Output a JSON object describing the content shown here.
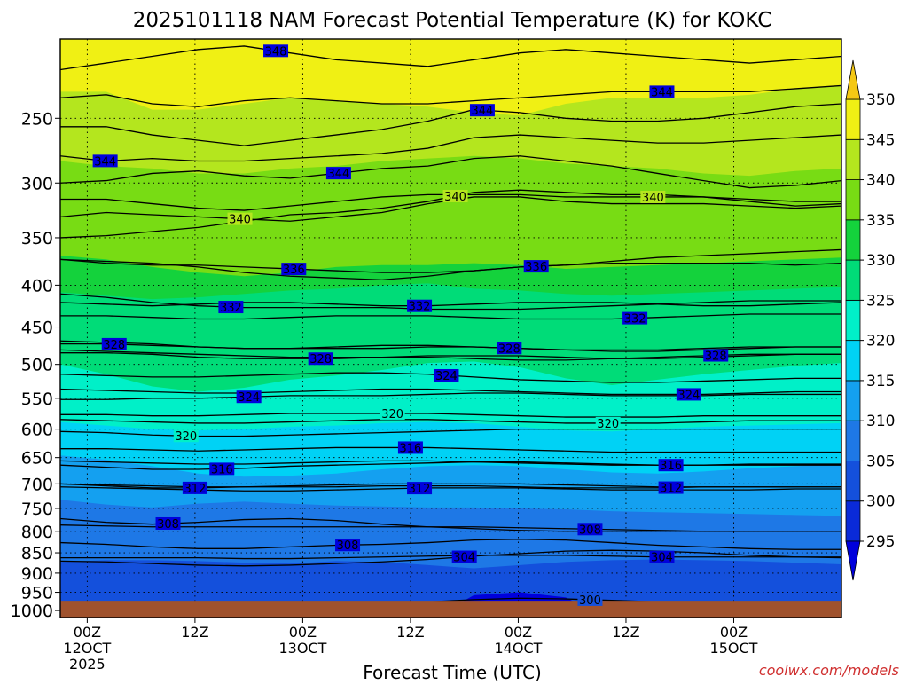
{
  "chart_data": {
    "type": "contour",
    "title": "2025101118 NAM Forecast Potential Temperature (K) for KOKC",
    "xlabel": "Forecast Time (UTC)",
    "ylabel": "",
    "watermark": "coolwx.com/models",
    "x_range_hours": [
      -3,
      84
    ],
    "y_axis": {
      "scale": "log-pressure",
      "range_hpa": [
        1020,
        200
      ],
      "ticks": [
        250,
        300,
        350,
        400,
        450,
        500,
        550,
        600,
        650,
        700,
        750,
        800,
        850,
        900,
        950,
        1000
      ]
    },
    "x_ticks": [
      {
        "hour": 0,
        "label": "00Z",
        "sub1": "12OCT",
        "sub2": "2025"
      },
      {
        "hour": 12,
        "label": "12Z",
        "sub1": "",
        "sub2": ""
      },
      {
        "hour": 24,
        "label": "00Z",
        "sub1": "13OCT",
        "sub2": ""
      },
      {
        "hour": 36,
        "label": "12Z",
        "sub1": "",
        "sub2": ""
      },
      {
        "hour": 48,
        "label": "00Z",
        "sub1": "14OCT",
        "sub2": ""
      },
      {
        "hour": 60,
        "label": "12Z",
        "sub1": "",
        "sub2": ""
      },
      {
        "hour": 72,
        "label": "00Z",
        "sub1": "15OCT",
        "sub2": ""
      }
    ],
    "color_scale": {
      "levels": [
        295,
        300,
        305,
        310,
        315,
        320,
        325,
        330,
        335,
        340,
        345,
        350
      ],
      "labels": [
        "295",
        "300",
        "305",
        "310",
        "315",
        "320",
        "325",
        "330",
        "335",
        "340",
        "345",
        "350"
      ],
      "colors": [
        "#0000dc",
        "#0a2ad8",
        "#1450dc",
        "#1e78e6",
        "#14a0f0",
        "#00d2f5",
        "#00f0c8",
        "#00dc78",
        "#14d23c",
        "#78dc14",
        "#b4e61e",
        "#f0f014",
        "#f5c814"
      ]
    },
    "shaded_bands": [
      {
        "value": 350,
        "pressure_hpa": [
          190,
          190,
          190,
          190,
          190,
          190,
          190,
          190,
          190,
          190,
          190,
          190,
          190,
          190,
          190,
          190,
          190,
          190
        ]
      },
      {
        "value": 345,
        "pressure_hpa": [
          232,
          232,
          244,
          244,
          240,
          236,
          238,
          240,
          242,
          246,
          248,
          240,
          236,
          236,
          236,
          234,
          230,
          228
        ]
      },
      {
        "value": 340,
        "pressure_hpa": [
          282,
          286,
          288,
          292,
          292,
          288,
          286,
          282,
          280,
          278,
          280,
          284,
          286,
          288,
          292,
          294,
          290,
          288
        ]
      },
      {
        "value": 335,
        "pressure_hpa": [
          368,
          372,
          380,
          386,
          390,
          386,
          380,
          378,
          378,
          376,
          378,
          382,
          380,
          378,
          376,
          374,
          372,
          370
        ]
      },
      {
        "value": 330,
        "pressure_hpa": [
          408,
          412,
          416,
          414,
          410,
          406,
          404,
          400,
          398,
          404,
          406,
          410,
          412,
          410,
          408,
          406,
          404,
          402
        ]
      },
      {
        "value": 325,
        "pressure_hpa": [
          500,
          514,
          532,
          540,
          534,
          522,
          516,
          508,
          498,
          496,
          504,
          520,
          530,
          522,
          514,
          508,
          502,
          498
        ]
      },
      {
        "value": 320,
        "pressure_hpa": [
          588,
          594,
          600,
          602,
          600,
          596,
          594,
          590,
          588,
          590,
          596,
          602,
          604,
          600,
          596,
          594,
          592,
          590
        ]
      },
      {
        "value": 315,
        "pressure_hpa": [
          646,
          654,
          666,
          680,
          686,
          684,
          680,
          672,
          666,
          664,
          666,
          672,
          678,
          680,
          676,
          670,
          666,
          662
        ]
      },
      {
        "value": 310,
        "pressure_hpa": [
          732,
          742,
          748,
          740,
          736,
          740,
          744,
          746,
          748,
          748,
          750,
          752,
          756,
          758,
          760,
          762,
          764,
          766
        ]
      },
      {
        "value": 305,
        "pressure_hpa": [
          872,
          868,
          868,
          870,
          874,
          876,
          870,
          872,
          880,
          888,
          880,
          872,
          868,
          866,
          868,
          870,
          874,
          878
        ]
      },
      {
        "value": 300,
        "pressure_hpa": [
          1030,
          1030,
          1030,
          1030,
          1030,
          1030,
          1030,
          1030,
          1030,
          958,
          950,
          964,
          1030,
          1030,
          1030,
          1030,
          1030,
          1030
        ]
      }
    ],
    "contours": [
      {
        "value": 348,
        "label": "348",
        "label_hour": 21,
        "pressure_hpa": [
          218,
          214,
          210,
          206,
          204,
          208,
          212,
          214,
          216,
          212,
          208,
          206,
          208,
          210,
          212,
          214,
          212,
          210
        ]
      },
      {
        "value": 344,
        "label": "344",
        "label_hour": 2,
        "pressure_hpa": [
          278,
          282,
          280,
          282,
          282,
          280,
          278,
          276,
          272,
          264,
          262,
          264,
          266,
          268,
          268,
          266,
          264,
          262
        ]
      },
      {
        "value": 344,
        "label": "344",
        "label_hour": 28,
        "pressure_hpa": [
          300,
          298,
          292,
          290,
          294,
          296,
          292,
          288,
          286,
          280,
          278,
          282,
          286,
          292,
          298,
          304,
          302,
          298
        ]
      },
      {
        "value": 344,
        "label": "344",
        "label_hour": 44,
        "pressure_hpa": [
          256,
          256,
          262,
          266,
          270,
          266,
          262,
          258,
          252,
          244,
          246,
          250,
          252,
          252,
          250,
          246,
          242,
          240
        ]
      },
      {
        "value": 344,
        "label": "344",
        "label_hour": 64,
        "pressure_hpa": [
          236,
          234,
          240,
          242,
          238,
          236,
          238,
          240,
          240,
          238,
          236,
          234,
          232,
          232,
          232,
          232,
          230,
          228
        ]
      },
      {
        "value": 340,
        "label": "340",
        "label_hour": 17,
        "pressure_hpa": [
          330,
          326,
          328,
          330,
          332,
          334,
          330,
          326,
          318,
          312,
          312,
          316,
          318,
          318,
          318,
          320,
          322,
          320
        ]
      },
      {
        "value": 340,
        "label": "340",
        "label_hour": 41,
        "pressure_hpa": [
          350,
          348,
          344,
          340,
          334,
          328,
          326,
          322,
          316,
          308,
          306,
          308,
          310,
          310,
          312,
          316,
          320,
          318
        ]
      },
      {
        "value": 340,
        "label": "340",
        "label_hour": 63,
        "pressure_hpa": [
          314,
          314,
          318,
          322,
          324,
          320,
          316,
          312,
          310,
          310,
          310,
          312,
          312,
          312,
          312,
          314,
          316,
          316
        ]
      },
      {
        "value": 336,
        "label": "336",
        "label_hour": 23,
        "pressure_hpa": [
          372,
          376,
          378,
          378,
          380,
          382,
          384,
          386,
          386,
          384,
          380,
          378,
          376,
          376,
          376,
          376,
          378,
          376
        ]
      },
      {
        "value": 336,
        "label": "336",
        "label_hour": 50,
        "pressure_hpa": [
          372,
          374,
          376,
          380,
          386,
          390,
          392,
          394,
          390,
          384,
          380,
          378,
          374,
          370,
          368,
          366,
          364,
          362
        ]
      },
      {
        "value": 332,
        "label": "332",
        "label_hour": 16,
        "pressure_hpa": [
          410,
          414,
          420,
          424,
          426,
          426,
          426,
          426,
          428,
          428,
          428,
          426,
          424,
          422,
          420,
          418,
          418,
          418
        ]
      },
      {
        "value": 332,
        "label": "332",
        "label_hour": 37,
        "pressure_hpa": [
          420,
          422,
          424,
          422,
          420,
          420,
          422,
          424,
          424,
          422,
          420,
          420,
          420,
          422,
          424,
          424,
          422,
          420
        ]
      },
      {
        "value": 332,
        "label": "332",
        "label_hour": 61,
        "pressure_hpa": [
          436,
          436,
          438,
          440,
          440,
          438,
          436,
          436,
          436,
          438,
          440,
          440,
          440,
          438,
          436,
          434,
          434,
          434
        ]
      },
      {
        "value": 328,
        "label": "328",
        "label_hour": 3,
        "pressure_hpa": [
          472,
          472,
          474,
          476,
          478,
          478,
          478,
          478,
          476,
          476,
          478,
          480,
          480,
          480,
          478,
          476,
          476,
          476
        ]
      },
      {
        "value": 328,
        "label": "328",
        "label_hour": 26,
        "pressure_hpa": [
          484,
          484,
          486,
          490,
          492,
          492,
          492,
          490,
          488,
          488,
          488,
          490,
          492,
          492,
          490,
          488,
          486,
          486
        ]
      },
      {
        "value": 328,
        "label": "328",
        "label_hour": 47,
        "pressure_hpa": [
          468,
          470,
          472,
          476,
          478,
          478,
          476,
          474,
          474,
          476,
          478,
          480,
          482,
          482,
          480,
          478,
          476,
          476
        ]
      },
      {
        "value": 328,
        "label": "328",
        "label_hour": 70,
        "pressure_hpa": [
          480,
          482,
          484,
          486,
          488,
          490,
          490,
          490,
          490,
          492,
          494,
          494,
          492,
          490,
          488,
          486,
          486,
          486
        ]
      },
      {
        "value": 324,
        "label": "324",
        "label_hour": 18,
        "pressure_hpa": [
          552,
          552,
          550,
          550,
          548,
          546,
          546,
          546,
          544,
          542,
          542,
          544,
          546,
          546,
          546,
          544,
          544,
          544
        ]
      },
      {
        "value": 324,
        "label": "324",
        "label_hour": 40,
        "pressure_hpa": [
          514,
          516,
          518,
          518,
          516,
          514,
          512,
          512,
          514,
          518,
          522,
          524,
          526,
          526,
          524,
          522,
          520,
          520
        ]
      },
      {
        "value": 324,
        "label": "324",
        "label_hour": 67,
        "pressure_hpa": [
          536,
          538,
          540,
          542,
          542,
          540,
          538,
          536,
          536,
          538,
          540,
          542,
          544,
          544,
          544,
          542,
          540,
          540
        ]
      },
      {
        "value": 320,
        "label": "320",
        "label_hour": 11,
        "pressure_hpa": [
          604,
          606,
          610,
          612,
          612,
          610,
          608,
          606,
          604,
          602,
          600,
          600,
          600,
          600,
          600,
          600,
          600,
          600
        ]
      },
      {
        "value": 320,
        "label": "320",
        "label_hour": 34,
        "pressure_hpa": [
          576,
          576,
          578,
          578,
          576,
          574,
          574,
          574,
          574,
          576,
          578,
          580,
          580,
          580,
          578,
          578,
          578,
          578
        ]
      },
      {
        "value": 320,
        "label": "320",
        "label_hour": 58,
        "pressure_hpa": [
          584,
          586,
          588,
          590,
          590,
          588,
          586,
          584,
          584,
          586,
          588,
          590,
          590,
          590,
          588,
          586,
          586,
          586
        ]
      },
      {
        "value": 316,
        "label": "316",
        "label_hour": 15,
        "pressure_hpa": [
          664,
          668,
          672,
          672,
          670,
          666,
          664,
          662,
          660,
          658,
          658,
          660,
          662,
          664,
          664,
          664,
          664,
          664
        ]
      },
      {
        "value": 316,
        "label": "316",
        "label_hour": 36,
        "pressure_hpa": [
          634,
          634,
          636,
          638,
          636,
          634,
          632,
          632,
          632,
          634,
          636,
          638,
          640,
          640,
          640,
          640,
          640,
          640
        ]
      },
      {
        "value": 316,
        "label": "316",
        "label_hour": 65,
        "pressure_hpa": [
          656,
          658,
          660,
          662,
          662,
          660,
          658,
          656,
          656,
          658,
          660,
          662,
          664,
          664,
          664,
          662,
          662,
          662
        ]
      },
      {
        "value": 312,
        "label": "312",
        "label_hour": 12,
        "pressure_hpa": [
          700,
          704,
          708,
          708,
          706,
          704,
          702,
          700,
          700,
          700,
          700,
          702,
          704,
          706,
          706,
          706,
          706,
          706
        ]
      },
      {
        "value": 312,
        "label": "312",
        "label_hour": 37,
        "pressure_hpa": [
          706,
          708,
          710,
          712,
          714,
          714,
          712,
          710,
          708,
          708,
          708,
          710,
          712,
          712,
          712,
          712,
          710,
          710
        ]
      },
      {
        "value": 312,
        "label": "312",
        "label_hour": 65,
        "pressure_hpa": [
          700,
          702,
          704,
          706,
          706,
          706,
          706,
          704,
          704,
          704,
          706,
          708,
          708,
          708,
          706,
          706,
          706,
          706
        ]
      },
      {
        "value": 308,
        "label": "308",
        "label_hour": 9,
        "pressure_hpa": [
          772,
          780,
          784,
          780,
          774,
          772,
          776,
          784,
          790,
          794,
          798,
          800,
          800,
          800,
          800,
          800,
          800,
          800
        ]
      },
      {
        "value": 308,
        "label": "308",
        "label_hour": 29,
        "pressure_hpa": [
          826,
          830,
          836,
          840,
          840,
          836,
          832,
          830,
          826,
          820,
          818,
          820,
          826,
          832,
          836,
          840,
          842,
          842
        ]
      },
      {
        "value": 308,
        "label": "308",
        "label_hour": 56,
        "pressure_hpa": [
          786,
          788,
          790,
          790,
          790,
          790,
          790,
          790,
          790,
          790,
          792,
          794,
          796,
          798,
          800,
          800,
          800,
          800
        ]
      },
      {
        "value": 304,
        "label": "304",
        "label_hour": 42,
        "pressure_hpa": [
          870,
          872,
          876,
          880,
          882,
          880,
          876,
          872,
          866,
          858,
          852,
          846,
          844,
          846,
          850,
          856,
          860,
          862
        ]
      },
      {
        "value": 304,
        "label": "304",
        "label_hour": 64,
        "pressure_hpa": [
          862,
          862,
          862,
          862,
          864,
          864,
          862,
          860,
          858,
          856,
          856,
          856,
          858,
          860,
          860,
          860,
          860,
          860
        ]
      },
      {
        "value": 300,
        "label": "300",
        "label_hour": 56,
        "pressure_hpa": [
          990,
          990,
          988,
          986,
          984,
          984,
          982,
          980,
          976,
          970,
          966,
          968,
          972,
          976,
          980,
          984,
          988,
          990
        ]
      }
    ],
    "surface": {
      "pressure_hpa": 973,
      "color": "#a0522d"
    },
    "colors": {
      "frame": "#000000",
      "label": "#000000",
      "grid": "#000000",
      "watermark": "#d03030"
    }
  }
}
